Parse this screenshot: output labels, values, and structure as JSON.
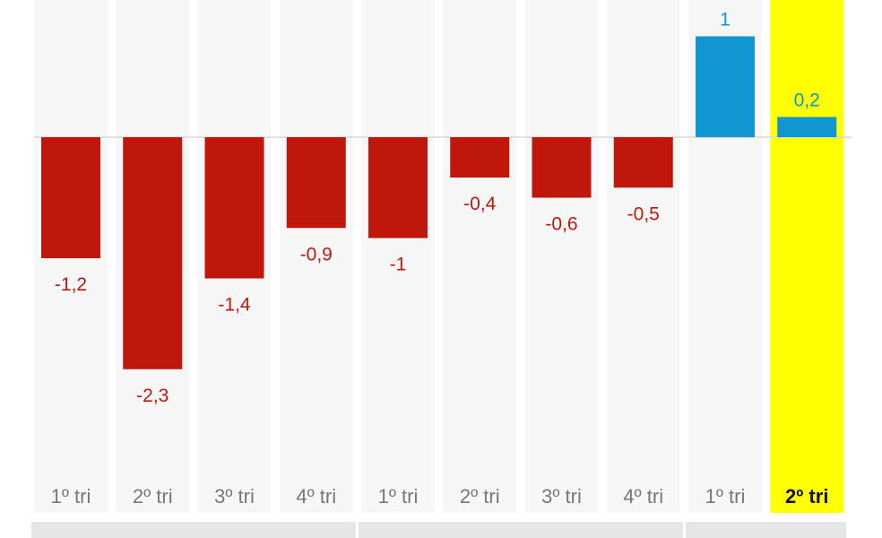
{
  "chart_data": {
    "type": "bar",
    "title": "",
    "xlabel": "",
    "ylabel": "",
    "categories": [
      "1º tri",
      "2º tri",
      "3º tri",
      "4º tri",
      "1º tri",
      "2º tri",
      "3º tri",
      "4º tri",
      "1º tri",
      "2º tri"
    ],
    "values": [
      -1.2,
      -2.3,
      -1.4,
      -0.9,
      -1.0,
      -0.4,
      -0.6,
      -0.5,
      1.0,
      0.2
    ],
    "value_labels": [
      "-1,2",
      "-2,3",
      "-1,4",
      "-0,9",
      "-1",
      "-0,4",
      "-0,6",
      "-0,5",
      "1",
      "0,2"
    ],
    "ylim": [
      -3.4,
      1.4
    ],
    "highlight_index": 9,
    "grid": false,
    "legend": "none",
    "year_groups": [
      {
        "start": 0,
        "end": 3
      },
      {
        "start": 4,
        "end": 7
      },
      {
        "start": 8,
        "end": 9
      }
    ]
  },
  "colors": {
    "negative": "#c0160c",
    "positive": "#1296d2",
    "highlight_background": "#ffff00",
    "column_background": "#f7f7f7",
    "year_band": "#e6e6e6"
  }
}
